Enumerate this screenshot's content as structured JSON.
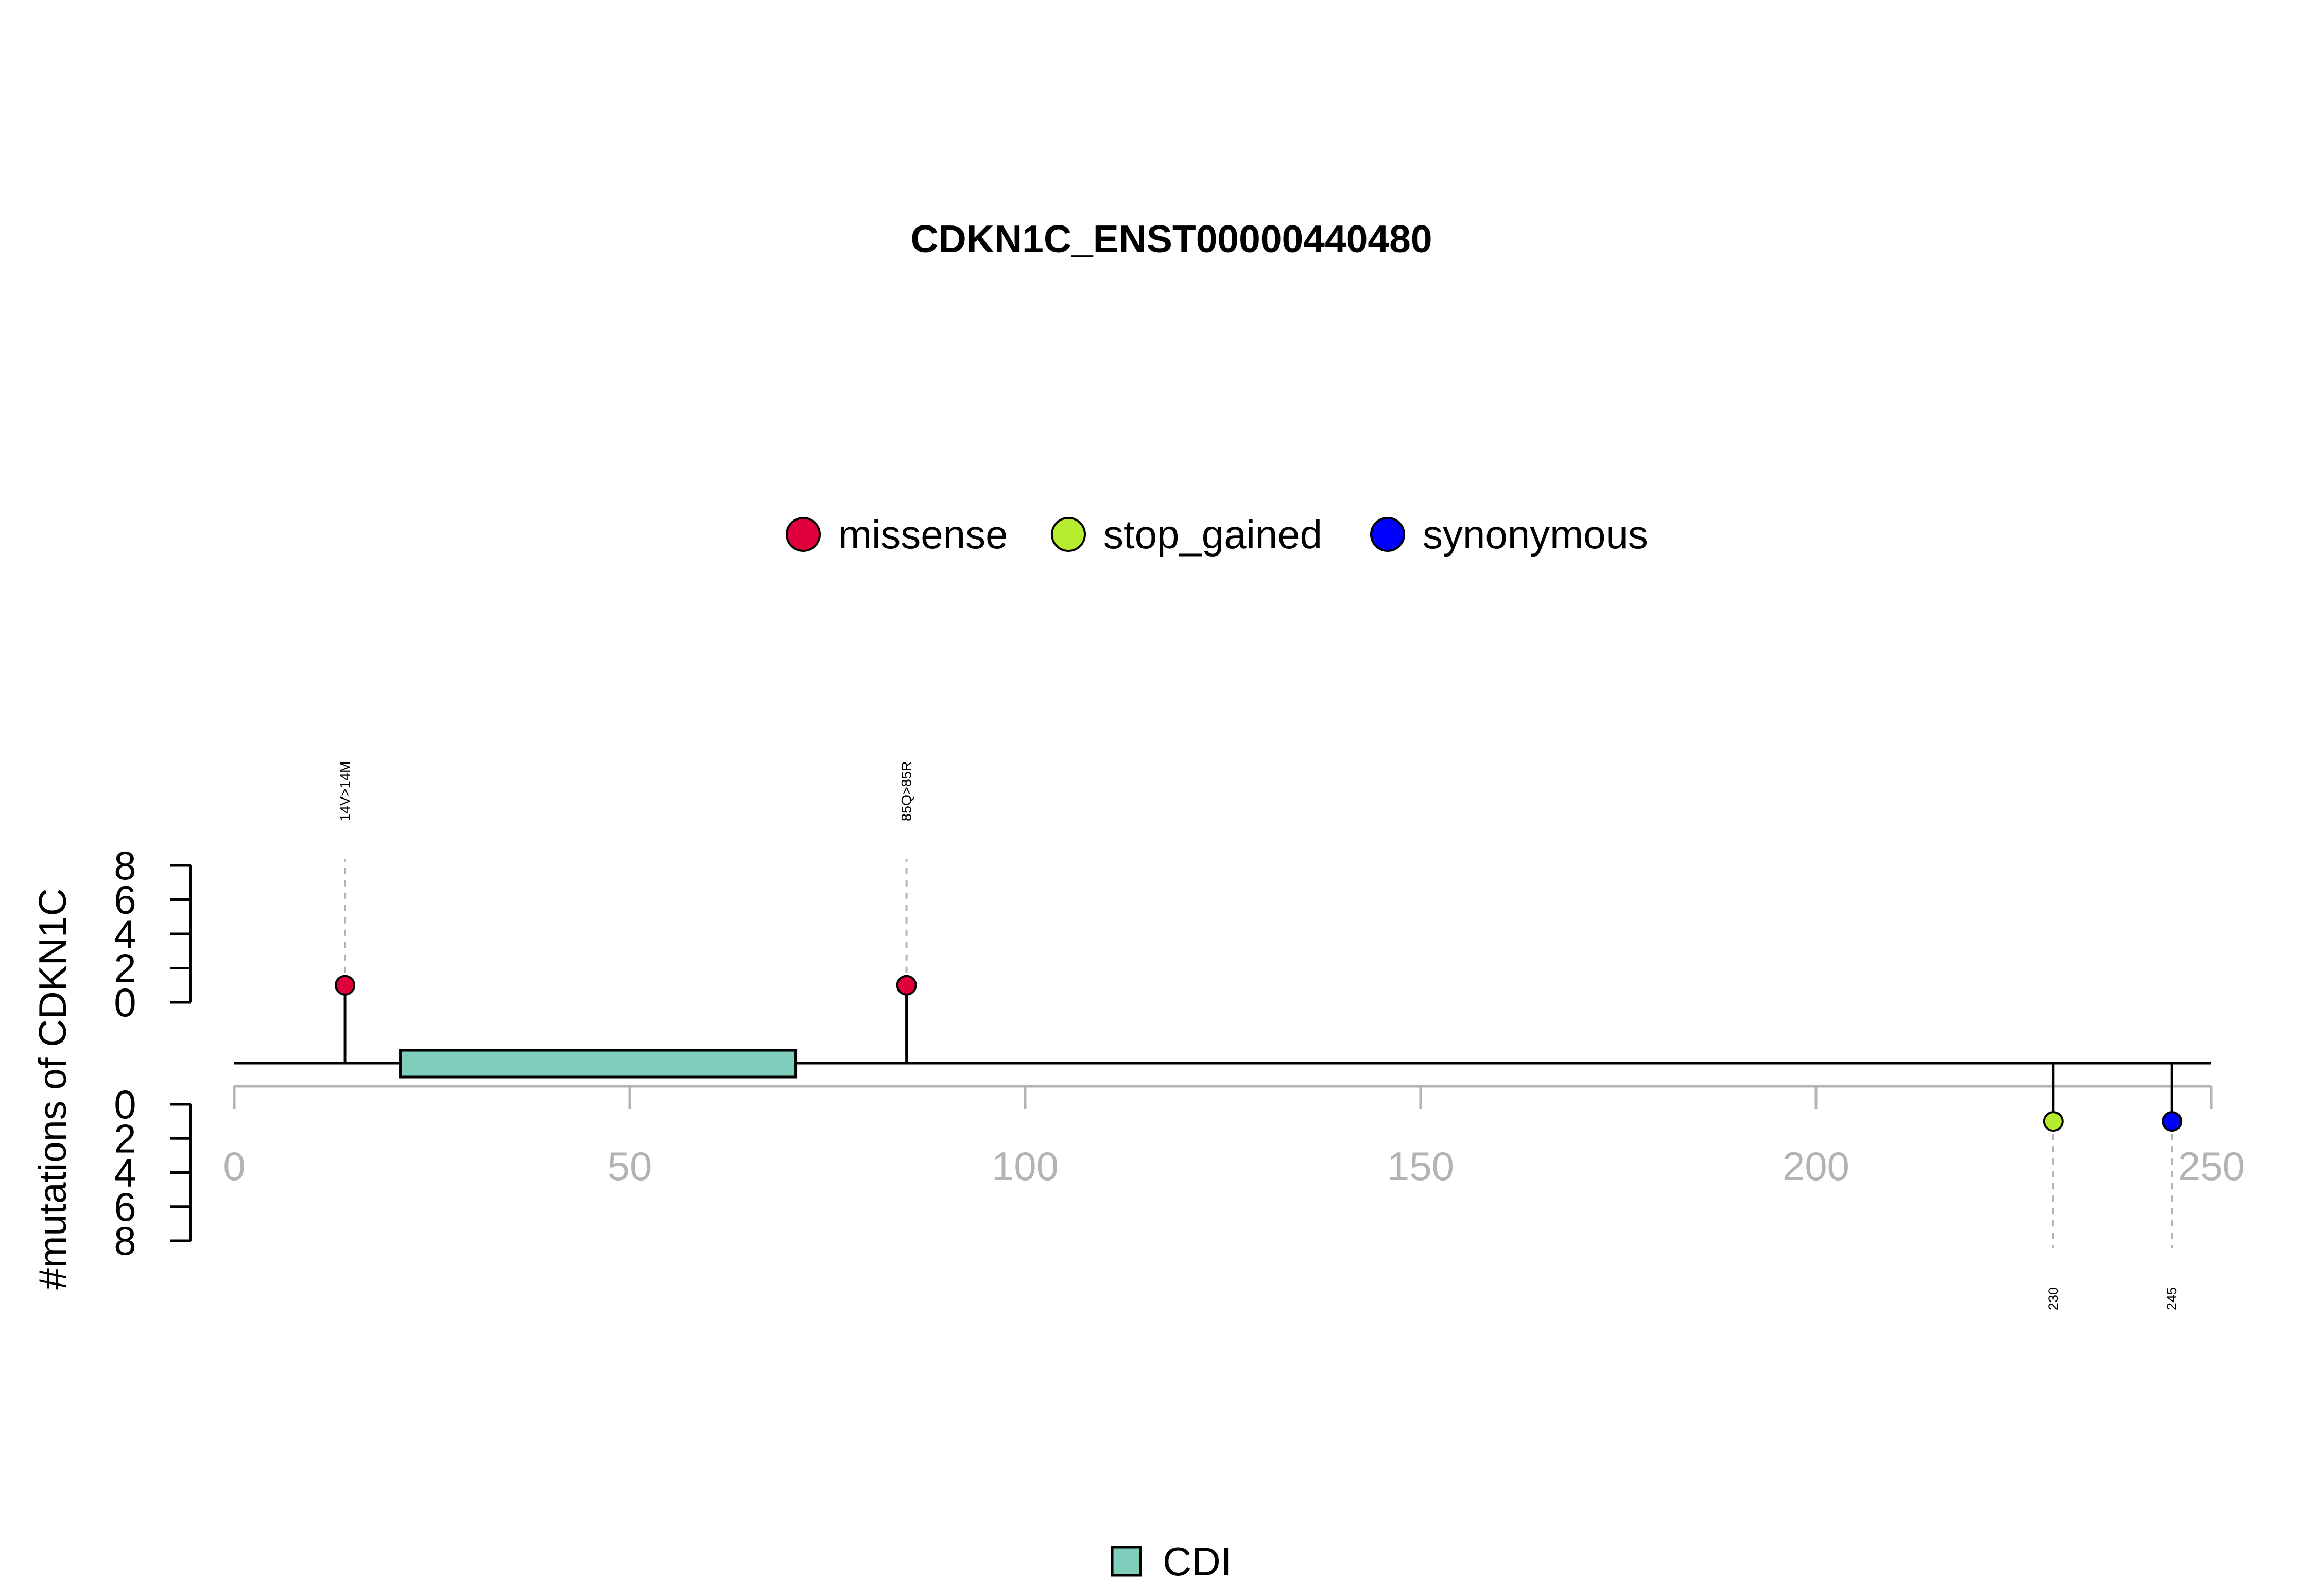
{
  "chart_data": {
    "type": "lollipop",
    "title": "CDKN1C_ENST00000440480",
    "ylabel": "#mutations of CDKN1C",
    "xlim": [
      0,
      250
    ],
    "x_ticks": [
      0,
      50,
      100,
      150,
      200,
      250
    ],
    "y_ticks": [
      0,
      2,
      4,
      6,
      8
    ],
    "ylim": [
      0,
      8
    ],
    "protein_length": 250,
    "legend": [
      {
        "label": "missense",
        "color": "#e0003c"
      },
      {
        "label": "stop_gained",
        "color": "#b5ec2e"
      },
      {
        "label": "synonymous",
        "color": "#0000ff"
      }
    ],
    "domains": [
      {
        "label": "CDI",
        "start": 21,
        "end": 71,
        "color": "#7fcdbb"
      }
    ],
    "mutations_above": [
      {
        "position": 14,
        "count": 1,
        "type": "missense",
        "label": "14V>14M"
      },
      {
        "position": 85,
        "count": 1,
        "type": "missense",
        "label": "85Q>85R"
      }
    ],
    "mutations_below": [
      {
        "position": 230,
        "count": 1,
        "type": "stop_gained",
        "label": "230"
      },
      {
        "position": 245,
        "count": 1,
        "type": "synonymous",
        "label": "245"
      }
    ]
  }
}
